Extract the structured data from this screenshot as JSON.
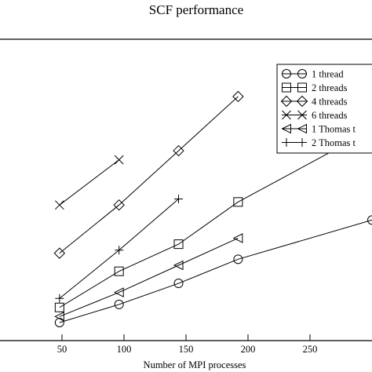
{
  "chart_data": {
    "type": "line",
    "title": "SCF performance",
    "xlabel": "Number of MPI processes",
    "ylabel": "",
    "xlim": [
      0,
      300
    ],
    "ylim": [
      0,
      1
    ],
    "x_ticks": [
      50,
      100,
      150,
      200,
      250
    ],
    "grid": false,
    "legend_position": "top-right",
    "series": [
      {
        "name": "1 thread",
        "marker": "circle",
        "x": [
          48,
          96,
          144,
          192,
          300
        ],
        "y": [
          0.06,
          0.12,
          0.19,
          0.27,
          0.4
        ]
      },
      {
        "name": "2 threads",
        "marker": "square",
        "x": [
          48,
          96,
          144,
          192,
          300
        ],
        "y": [
          0.11,
          0.23,
          0.32,
          0.46,
          0.7
        ]
      },
      {
        "name": "4 threads",
        "marker": "diamond",
        "x": [
          48,
          96,
          144,
          192
        ],
        "y": [
          0.29,
          0.45,
          0.63,
          0.81
        ]
      },
      {
        "name": "6 threads",
        "marker": "x",
        "x": [
          48,
          96
        ],
        "y": [
          0.45,
          0.6
        ]
      },
      {
        "name": "1 Thomas t",
        "marker": "triangle-left",
        "x": [
          48,
          96,
          144,
          192
        ],
        "y": [
          0.08,
          0.16,
          0.25,
          0.34
        ]
      },
      {
        "name": "2 Thomas t",
        "marker": "plus",
        "x": [
          48,
          96,
          144
        ],
        "y": [
          0.14,
          0.3,
          0.47
        ]
      }
    ]
  }
}
